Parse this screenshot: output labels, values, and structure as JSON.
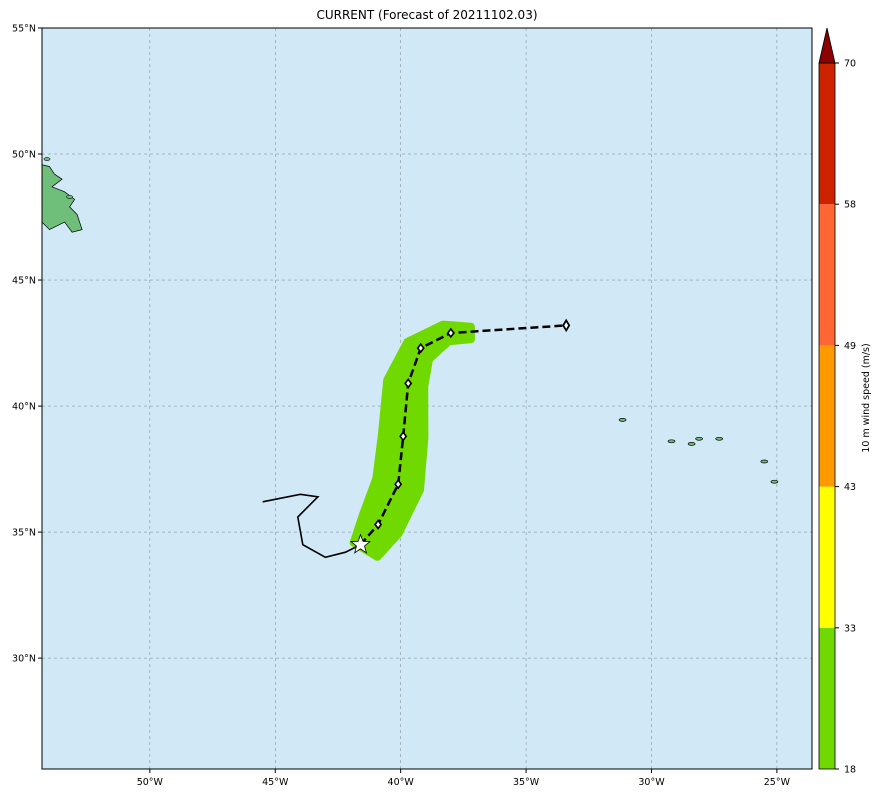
{
  "title": "CURRENT (Forecast of 20211102.03)",
  "map": {
    "lon_range": [
      -54.3,
      -23.6
    ],
    "lat_range": [
      25.6,
      55.0
    ],
    "ocean_color": "#d1e8f7",
    "land_color": "#6fbf7a",
    "gridlines": true,
    "lon_ticks": [
      {
        "value": -50,
        "label": "50°W"
      },
      {
        "value": -45,
        "label": "45°W"
      },
      {
        "value": -40,
        "label": "40°W"
      },
      {
        "value": -35,
        "label": "35°W"
      },
      {
        "value": -30,
        "label": "30°W"
      },
      {
        "value": -25,
        "label": "25°W"
      }
    ],
    "lat_ticks": [
      {
        "value": 55,
        "label": "55°N"
      },
      {
        "value": 50,
        "label": "50°N"
      },
      {
        "value": 45,
        "label": "45°N"
      },
      {
        "value": 40,
        "label": "40°N"
      },
      {
        "value": 35,
        "label": "35°N"
      },
      {
        "value": 30,
        "label": "30°N"
      }
    ],
    "past_track": [
      [
        -45.5,
        36.2
      ],
      [
        -44.0,
        36.5
      ],
      [
        -43.3,
        36.4
      ],
      [
        -44.1,
        35.6
      ],
      [
        -43.9,
        34.5
      ],
      [
        -43.0,
        34.0
      ],
      [
        -42.2,
        34.2
      ],
      [
        -41.6,
        34.5
      ]
    ],
    "forecast_track": [
      [
        -41.6,
        34.5
      ],
      [
        -40.9,
        35.3
      ],
      [
        -40.1,
        36.9
      ],
      [
        -39.9,
        38.8
      ],
      [
        -39.7,
        40.9
      ],
      [
        -39.2,
        42.3
      ],
      [
        -38.0,
        42.9
      ],
      [
        -33.4,
        43.2
      ]
    ],
    "forecast_points": [
      [
        -40.9,
        35.3
      ],
      [
        -40.1,
        36.9
      ],
      [
        -39.9,
        38.8
      ],
      [
        -39.7,
        40.9
      ],
      [
        -39.2,
        42.3
      ],
      [
        -38.0,
        42.9
      ]
    ],
    "current_position": [
      -41.6,
      34.5
    ],
    "end_marker": [
      -33.4,
      43.2
    ],
    "wind_swath": {
      "category": "18-33 m/s",
      "color": "#6fd900",
      "centerline": [
        [
          -41.4,
          34.3
        ],
        [
          -40.8,
          35.3
        ],
        [
          -40.1,
          36.9
        ],
        [
          -39.9,
          38.8
        ],
        [
          -39.8,
          40.9
        ],
        [
          -39.3,
          42.2
        ],
        [
          -38.2,
          42.9
        ],
        [
          -37.2,
          42.9
        ]
      ],
      "half_width_deg": [
        0.55,
        0.8,
        0.9,
        0.85,
        0.75,
        0.55,
        0.35,
        0.25
      ]
    },
    "islands": [
      [
        -31.15,
        39.45
      ],
      [
        -29.2,
        38.6
      ],
      [
        -28.4,
        38.5
      ],
      [
        -28.1,
        38.7
      ],
      [
        -27.3,
        38.7
      ],
      [
        -25.5,
        37.8
      ],
      [
        -25.1,
        37.0
      ]
    ]
  },
  "colorbar": {
    "label": "10 m wind speed (m/s)",
    "levels": [
      18,
      33,
      43,
      49,
      58,
      70
    ],
    "colors": [
      "#6fd900",
      "#ffff00",
      "#ff9900",
      "#ff6633",
      "#cc2200"
    ],
    "extend_color": "#8b0000"
  }
}
